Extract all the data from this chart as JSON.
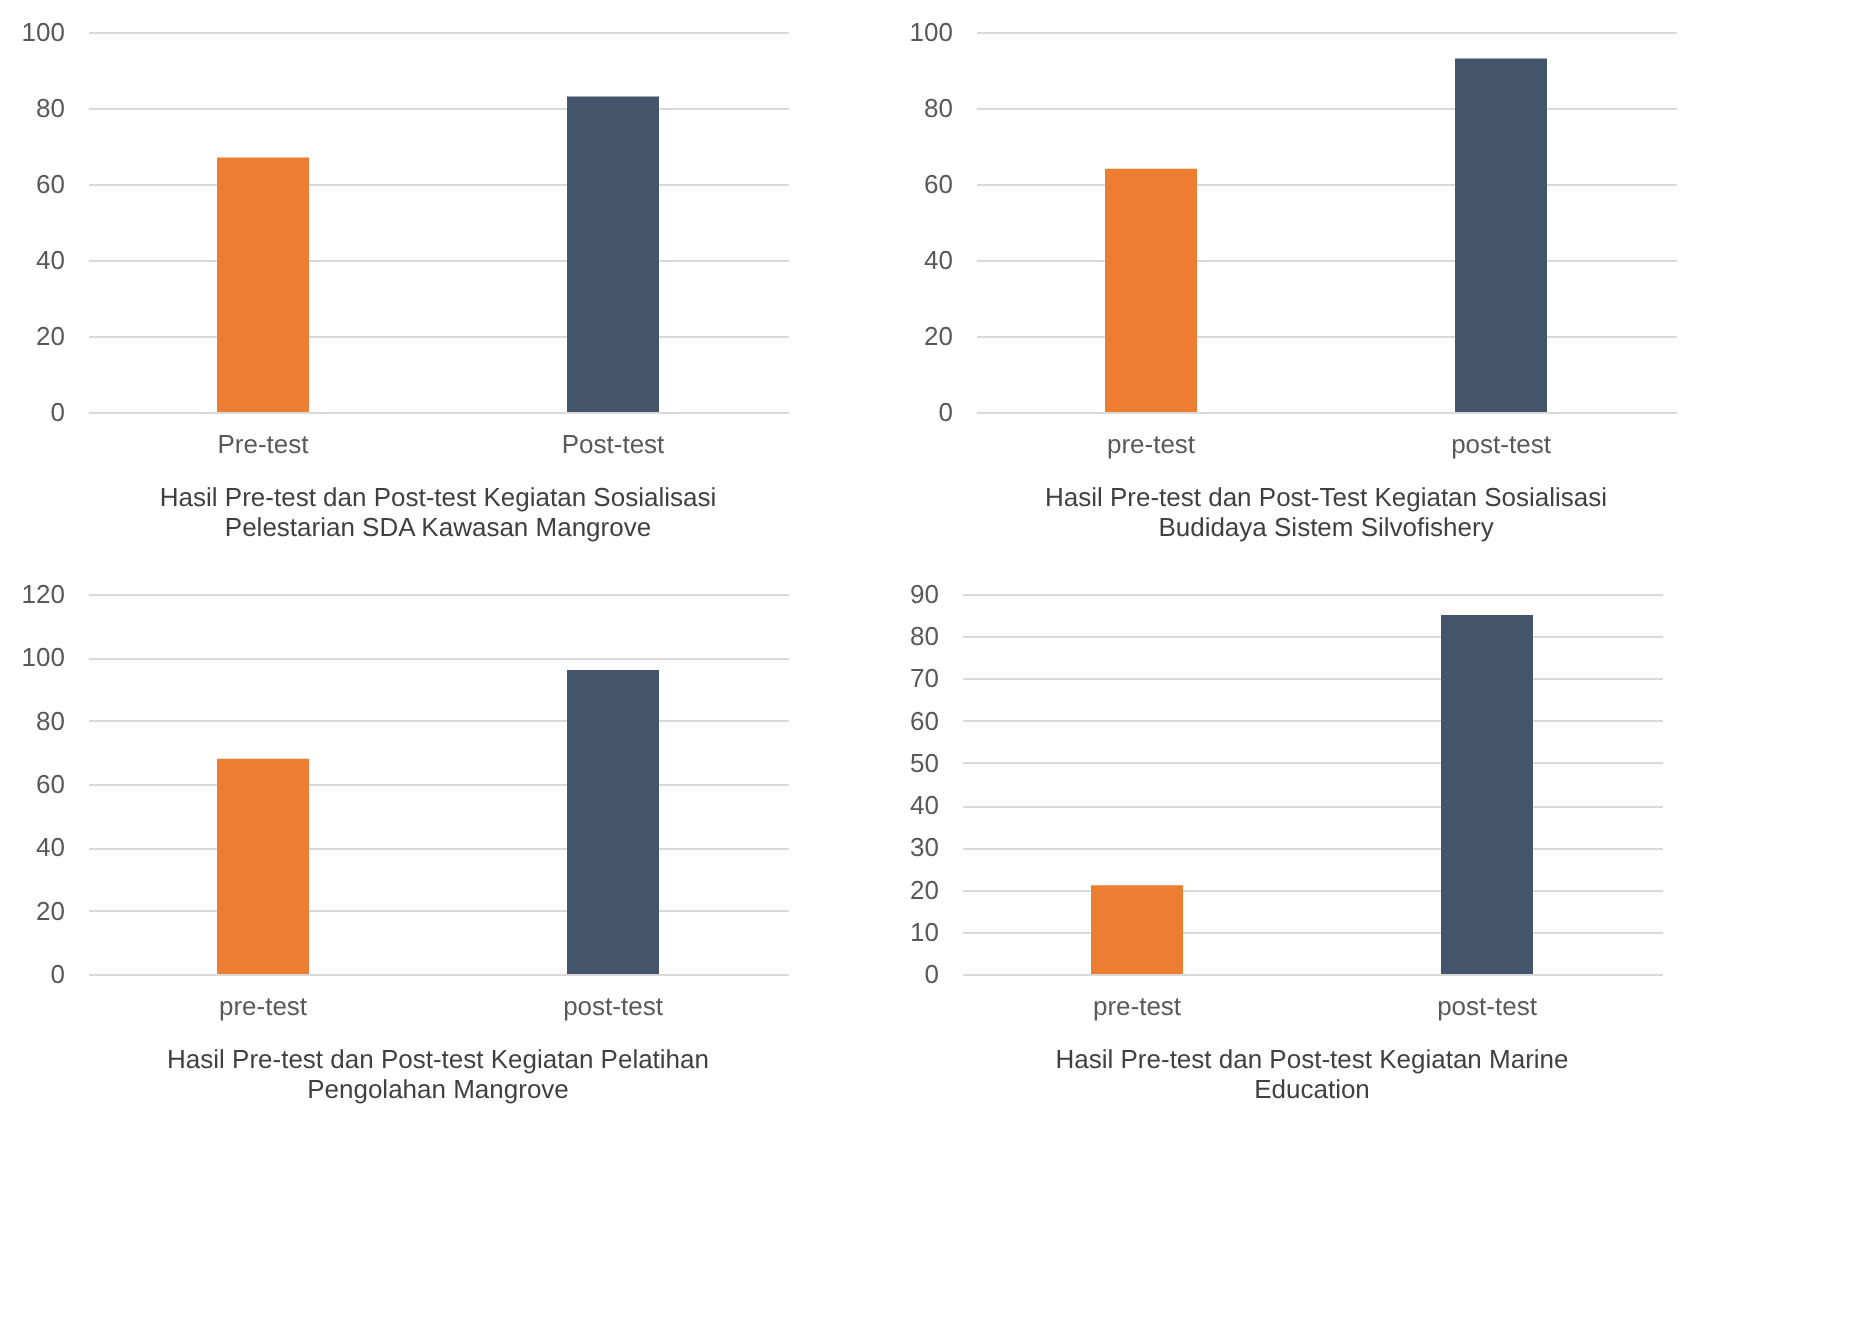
{
  "chart_data": [
    {
      "type": "bar",
      "title": "Hasil Pre-test dan Post-test Kegiatan Sosialisasi Pelestarian SDA Kawasan Mangrove",
      "categories": [
        "Pre-test",
        "Post-test"
      ],
      "values": [
        67,
        83
      ],
      "colors": [
        "#ed7d31",
        "#44546a"
      ],
      "ylim": [
        0,
        100
      ],
      "yticks": [
        0,
        20,
        40,
        60,
        80,
        100
      ],
      "grid": "y"
    },
    {
      "type": "bar",
      "title": "Hasil Pre-test dan Post-Test Kegiatan Sosialisasi Budidaya Sistem Silvofishery",
      "categories": [
        "pre-test",
        "post-test"
      ],
      "values": [
        64,
        93
      ],
      "colors": [
        "#ed7d31",
        "#44546a"
      ],
      "ylim": [
        0,
        100
      ],
      "yticks": [
        0,
        20,
        40,
        60,
        80,
        100
      ],
      "grid": "y"
    },
    {
      "type": "bar",
      "title": "Hasil Pre-test dan Post-test Kegiatan Pelatihan Pengolahan Mangrove",
      "categories": [
        "pre-test",
        "post-test"
      ],
      "values": [
        68,
        96
      ],
      "colors": [
        "#ed7d31",
        "#44546a"
      ],
      "ylim": [
        0,
        120
      ],
      "yticks": [
        0,
        20,
        40,
        60,
        80,
        100,
        120
      ],
      "grid": "y"
    },
    {
      "type": "bar",
      "title": "Hasil Pre-test dan Post-test Kegiatan Marine Education",
      "categories": [
        "pre-test",
        "post-test"
      ],
      "values": [
        21,
        85
      ],
      "colors": [
        "#ed7d31",
        "#44546a"
      ],
      "ylim": [
        0,
        90
      ],
      "yticks": [
        0,
        10,
        20,
        30,
        40,
        50,
        60,
        70,
        80,
        90
      ],
      "grid": "y"
    }
  ]
}
